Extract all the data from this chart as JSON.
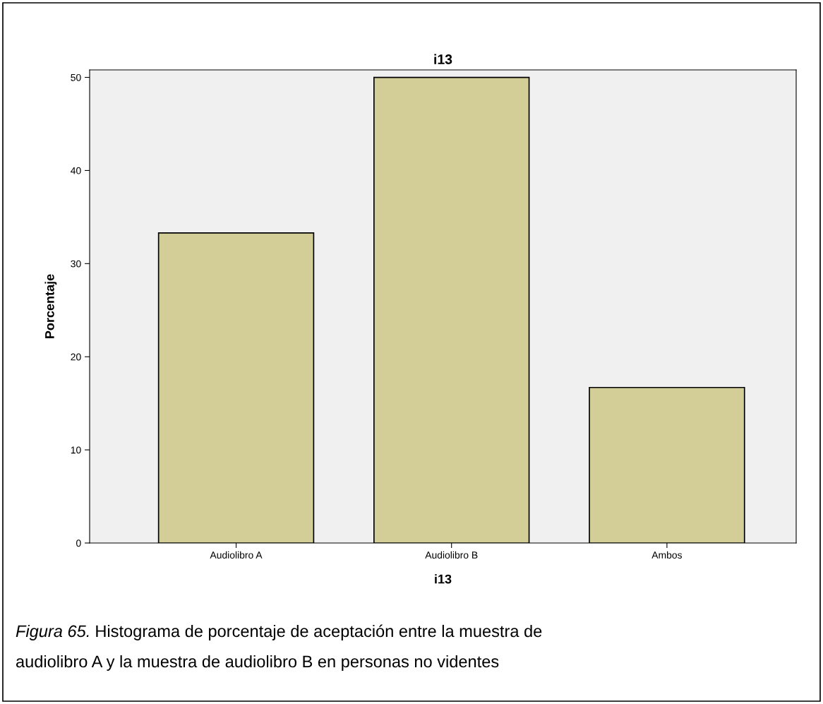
{
  "chart_data": {
    "type": "bar",
    "title": "i13",
    "xlabel": "i13",
    "ylabel": "Porcentaje",
    "categories": [
      "Audiolibro A",
      "Audiolibro B",
      "Ambos"
    ],
    "values": [
      33.3,
      50.0,
      16.7
    ],
    "color": "#d3ce97",
    "ylim": [
      0,
      50.8
    ],
    "yticks": [
      0,
      10,
      20,
      30,
      40,
      50
    ],
    "grid": false,
    "annotations": [
      "Figura 65.",
      "Histograma de porcentaje de aceptación entre la muestra de",
      "audiolibro A y la muestra de audiolibro B en personas no videntes"
    ]
  }
}
